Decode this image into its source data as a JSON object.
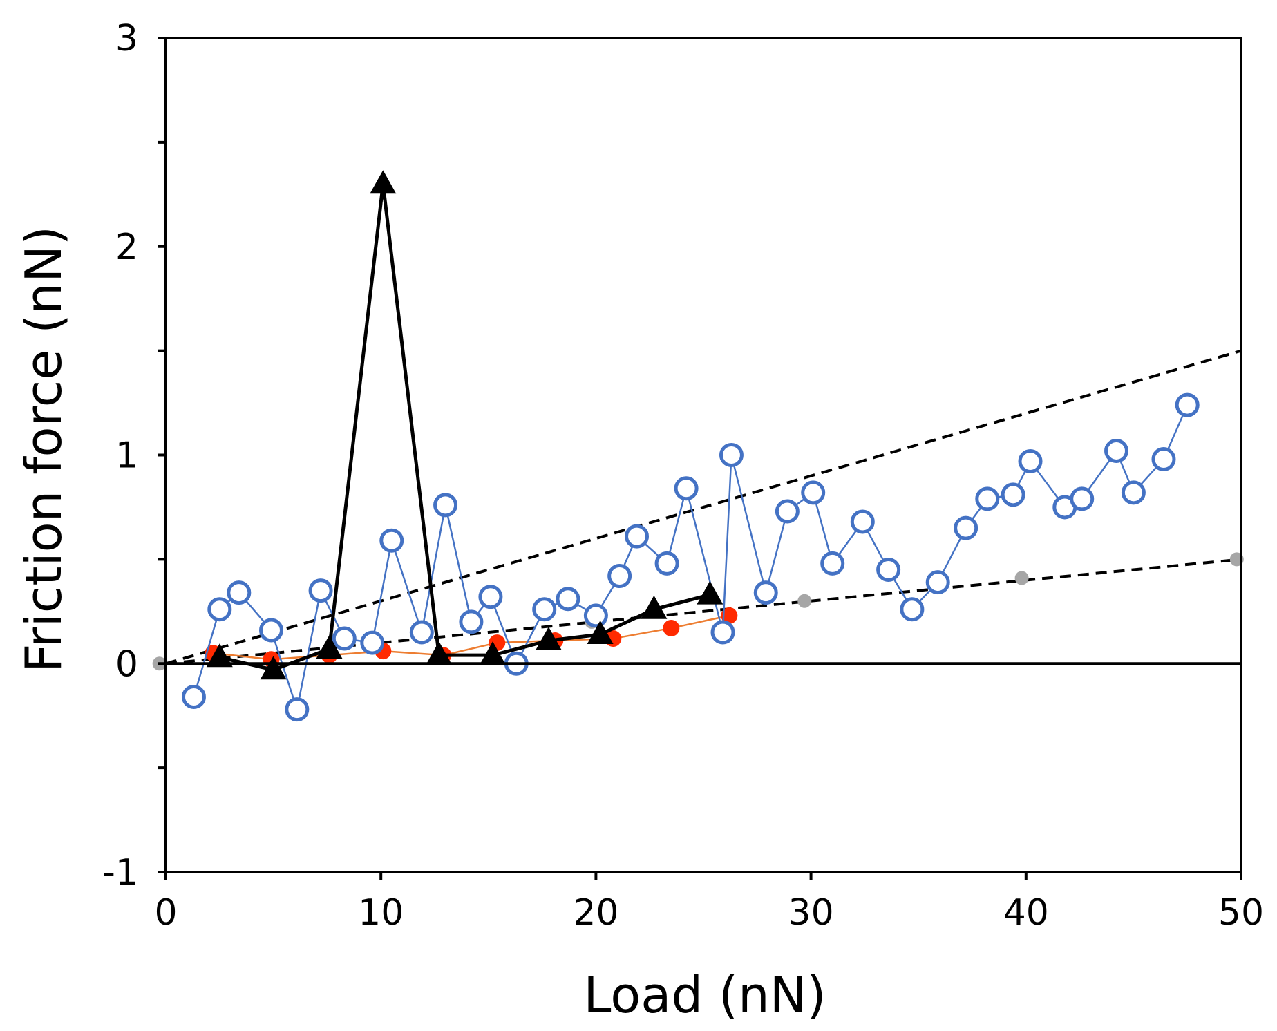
{
  "chart_data": {
    "type": "line",
    "title": "",
    "xlabel": "Load (nN)",
    "ylabel": "Friction force (nN)",
    "xlim": [
      0,
      50
    ],
    "ylim": [
      -1,
      3
    ],
    "grid": false,
    "x_ticks": [
      0,
      10,
      20,
      30,
      40,
      50
    ],
    "x_tick_labels": [
      "0",
      "10",
      "20",
      "30",
      "40",
      "50"
    ],
    "y_ticks": [
      -1,
      0,
      1,
      2,
      3
    ],
    "y_tick_labels": [
      "-1",
      "0",
      "1",
      "2",
      "3"
    ],
    "series": [
      {
        "name": "open-circles-blue",
        "marker": "open-circle",
        "color": "#4472c4",
        "x": [
          1.3,
          2.5,
          3.4,
          4.9,
          6.1,
          7.2,
          8.3,
          9.6,
          10.5,
          11.9,
          13.0,
          14.2,
          15.1,
          16.3,
          17.6,
          18.7,
          20.0,
          21.1,
          21.9,
          23.3,
          24.2,
          25.9,
          26.3,
          27.9,
          28.9,
          30.1,
          31.0,
          32.4,
          33.6,
          34.7,
          35.9,
          37.2,
          38.2,
          39.4,
          40.2,
          41.8,
          42.6,
          44.2,
          45.0,
          46.4,
          47.5
        ],
        "y": [
          -0.16,
          0.26,
          0.34,
          0.16,
          -0.22,
          0.35,
          0.12,
          0.1,
          0.59,
          0.15,
          0.76,
          0.2,
          0.32,
          0.0,
          0.26,
          0.31,
          0.23,
          0.42,
          0.61,
          0.48,
          0.84,
          0.15,
          1.0,
          0.34,
          0.73,
          0.82,
          0.48,
          0.68,
          0.45,
          0.26,
          0.39,
          0.65,
          0.79,
          0.81,
          0.97,
          0.75,
          0.79,
          1.02,
          0.82,
          0.98,
          1.24
        ]
      },
      {
        "name": "filled-circles-red",
        "marker": "filled-circle",
        "color": "#ff2a00",
        "line_color": "#ed7d31",
        "x": [
          2.2,
          4.9,
          7.6,
          10.1,
          12.9,
          15.4,
          18.1,
          20.8,
          23.5,
          26.2
        ],
        "y": [
          0.05,
          0.02,
          0.04,
          0.06,
          0.04,
          0.1,
          0.11,
          0.12,
          0.17,
          0.23
        ]
      },
      {
        "name": "filled-triangles-black",
        "marker": "filled-triangle",
        "color": "#000000",
        "x": [
          2.5,
          5.0,
          7.6,
          10.1,
          12.7,
          15.2,
          17.8,
          20.2,
          22.7,
          25.3
        ],
        "y": [
          0.03,
          -0.03,
          0.07,
          2.3,
          0.04,
          0.04,
          0.11,
          0.14,
          0.26,
          0.33
        ]
      },
      {
        "name": "small-dots-gray",
        "marker": "small-dot",
        "color": "#a6a6a6",
        "x": [
          -0.3,
          9.8,
          19.8,
          29.7,
          39.8,
          49.8
        ],
        "y": [
          0.0,
          0.11,
          0.2,
          0.3,
          0.41,
          0.5
        ]
      },
      {
        "name": "dashed-fit-steep",
        "marker": "none",
        "style": "dashed",
        "color": "#000000",
        "x": [
          0,
          50
        ],
        "y": [
          0,
          1.5
        ]
      },
      {
        "name": "dashed-fit-shallow",
        "marker": "none",
        "style": "dashed",
        "color": "#000000",
        "x": [
          0,
          50
        ],
        "y": [
          0,
          0.5
        ]
      }
    ]
  }
}
